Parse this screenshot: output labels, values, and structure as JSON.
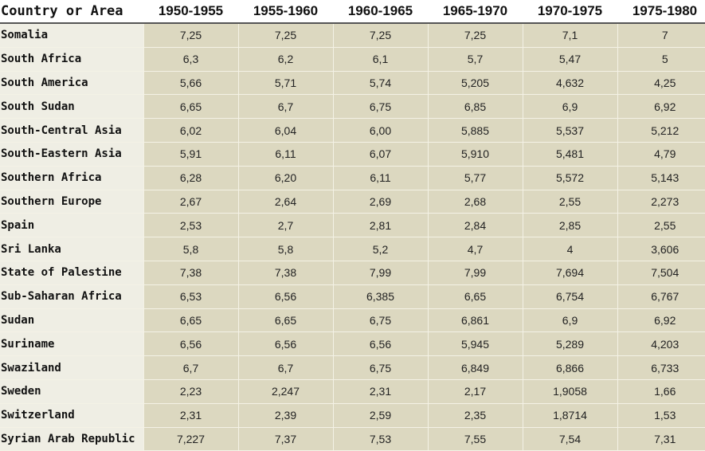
{
  "table": {
    "headers": [
      "Country or Area",
      "1950-1955",
      "1955-1960",
      "1960-1965",
      "1965-1970",
      "1970-1975",
      "1975-1980"
    ],
    "rows": [
      [
        "Somalia",
        "7,25",
        "7,25",
        "7,25",
        "7,25",
        "7,1",
        "7"
      ],
      [
        "South Africa",
        "6,3",
        "6,2",
        "6,1",
        "5,7",
        "5,47",
        "5"
      ],
      [
        "South America",
        "5,66",
        "5,71",
        "5,74",
        "5,205",
        "4,632",
        "4,25"
      ],
      [
        "South Sudan",
        "6,65",
        "6,7",
        "6,75",
        "6,85",
        "6,9",
        "6,92"
      ],
      [
        "South-Central Asia",
        "6,02",
        "6,04",
        "6,00",
        "5,885",
        "5,537",
        "5,212"
      ],
      [
        "South-Eastern Asia",
        "5,91",
        "6,11",
        "6,07",
        "5,910",
        "5,481",
        "4,79"
      ],
      [
        "Southern Africa",
        "6,28",
        "6,20",
        "6,11",
        "5,77",
        "5,572",
        "5,143"
      ],
      [
        "Southern Europe",
        "2,67",
        "2,64",
        "2,69",
        "2,68",
        "2,55",
        "2,273"
      ],
      [
        "Spain",
        "2,53",
        "2,7",
        "2,81",
        "2,84",
        "2,85",
        "2,55"
      ],
      [
        "Sri Lanka",
        "5,8",
        "5,8",
        "5,2",
        "4,7",
        "4",
        "3,606"
      ],
      [
        "State of Palestine",
        "7,38",
        "7,38",
        "7,99",
        "7,99",
        "7,694",
        "7,504"
      ],
      [
        "Sub-Saharan Africa",
        "6,53",
        "6,56",
        "6,385",
        "6,65",
        "6,754",
        "6,767"
      ],
      [
        "Sudan",
        "6,65",
        "6,65",
        "6,75",
        "6,861",
        "6,9",
        "6,92"
      ],
      [
        "Suriname",
        "6,56",
        "6,56",
        "6,56",
        "5,945",
        "5,289",
        "4,203"
      ],
      [
        "Swaziland",
        "6,7",
        "6,7",
        "6,75",
        "6,849",
        "6,866",
        "6,733"
      ],
      [
        "Sweden",
        "2,23",
        "2,247",
        "2,31",
        "2,17",
        "1,9058",
        "1,66"
      ],
      [
        "Switzerland",
        "2,31",
        "2,39",
        "2,59",
        "2,35",
        "1,8714",
        "1,53"
      ],
      [
        "Syrian Arab Republic",
        "7,227",
        "7,37",
        "7,53",
        "7,55",
        "7,54",
        "7,31"
      ]
    ]
  }
}
